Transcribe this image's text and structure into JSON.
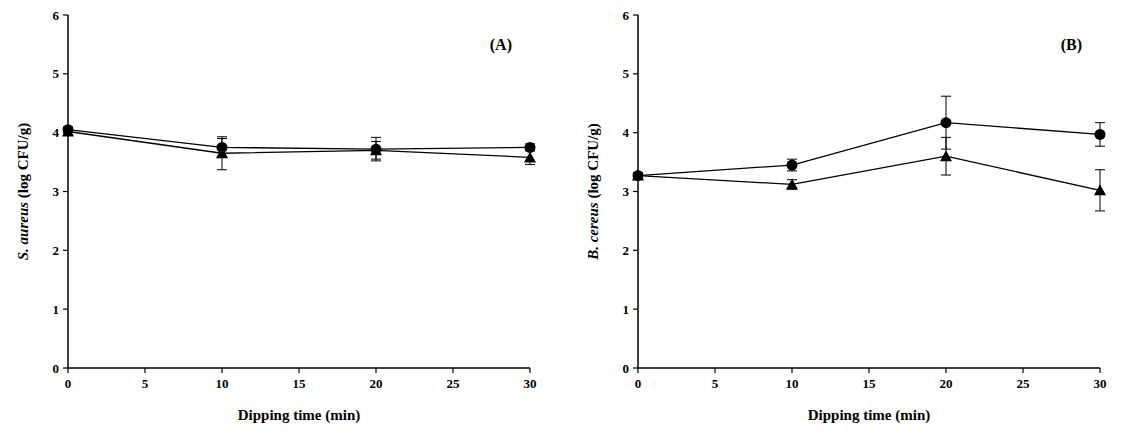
{
  "chart_data": [
    {
      "type": "line",
      "annotation": "(A)",
      "x_label": "Dipping time (min)",
      "y_label": "S. aureus (log CFU/g)",
      "x": [
        0,
        10,
        20,
        30
      ],
      "xlim": [
        0,
        30
      ],
      "xticks": [
        0,
        5,
        10,
        15,
        20,
        25,
        30
      ],
      "ylim": [
        0,
        6
      ],
      "yticks": [
        0,
        1,
        2,
        3,
        4,
        5,
        6
      ],
      "series": [
        {
          "color": "#000000",
          "marker": "circle",
          "values": [
            4.05,
            3.75,
            3.72,
            3.75
          ],
          "errors": [
            0.05,
            0.15,
            0.2,
            0.06
          ]
        },
        {
          "color": "#000000",
          "marker": "triangle",
          "values": [
            4.02,
            3.65,
            3.7,
            3.58
          ],
          "errors": [
            0.05,
            0.28,
            0.15,
            0.12
          ]
        }
      ]
    },
    {
      "type": "line",
      "annotation": "(B)",
      "x_label": "Dipping time (min)",
      "y_label": "B. cereus (log CFU/g)",
      "x": [
        0,
        10,
        20,
        30
      ],
      "xlim": [
        0,
        30
      ],
      "xticks": [
        0,
        5,
        10,
        15,
        20,
        25,
        30
      ],
      "ylim": [
        0,
        6
      ],
      "yticks": [
        0,
        1,
        2,
        3,
        4,
        5,
        6
      ],
      "series": [
        {
          "color": "#000000",
          "marker": "circle",
          "values": [
            3.27,
            3.45,
            4.17,
            3.97
          ],
          "errors": [
            0.05,
            0.1,
            0.45,
            0.2
          ]
        },
        {
          "color": "#000000",
          "marker": "triangle",
          "values": [
            3.27,
            3.12,
            3.6,
            3.02
          ],
          "errors": [
            0.05,
            0.08,
            0.32,
            0.35
          ]
        }
      ]
    }
  ]
}
